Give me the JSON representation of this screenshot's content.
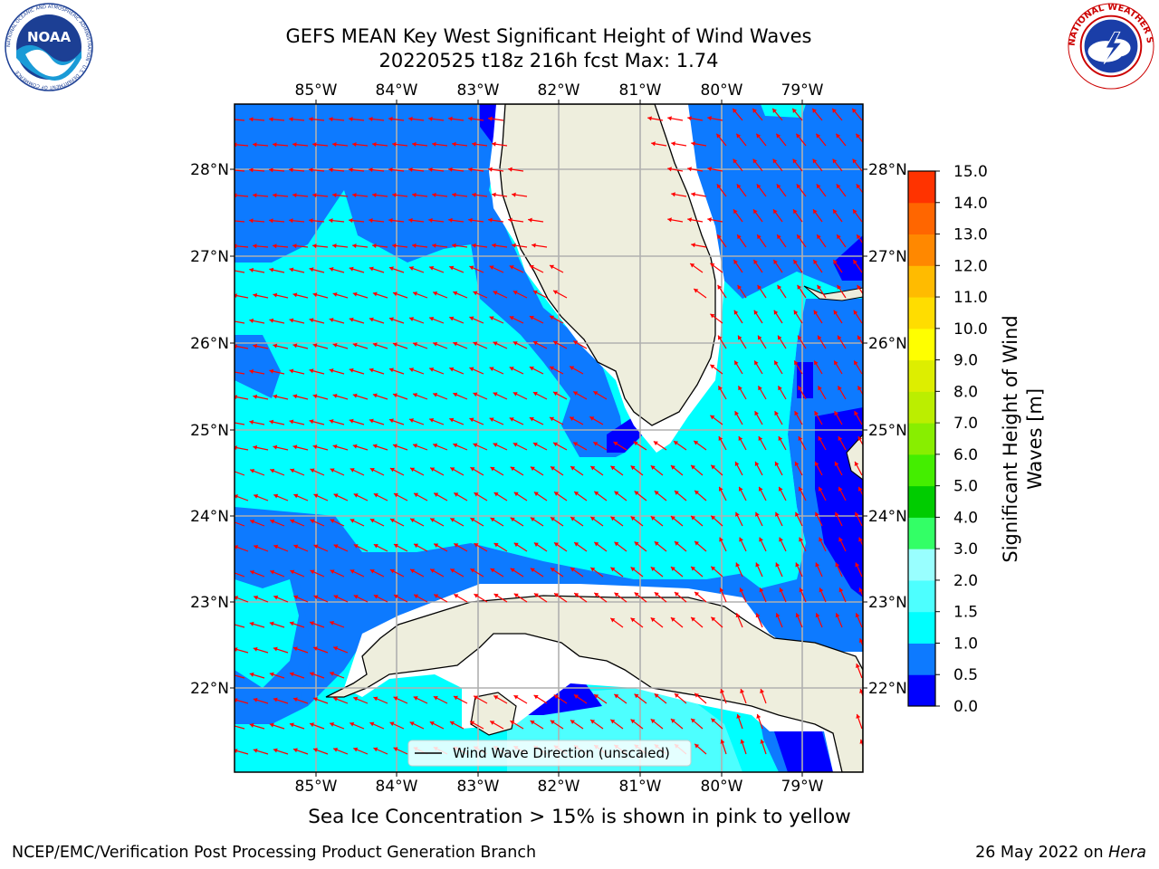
{
  "title": {
    "line1": "GEFS MEAN Key West Significant Height of Wind Waves",
    "line2": "20220525 t18z 216h fcst   Max: 1.74"
  },
  "logos": {
    "left": "noaa-logo",
    "left_text": "NOAA",
    "left_ring_text": "NATIONAL OCEANIC AND ATMOSPHERIC ADMINISTRATION · U.S. DEPARTMENT OF COMMERCE",
    "right": "national-weather-service-logo",
    "right_ring_text": "NATIONAL WEATHER SERVICE"
  },
  "map": {
    "lon_labels": [
      "85°W",
      "84°W",
      "83°W",
      "82°W",
      "81°W",
      "80°W",
      "79°W"
    ],
    "lat_labels": [
      "28°N",
      "27°N",
      "26°N",
      "25°N",
      "24°N",
      "23°N",
      "22°N"
    ],
    "legend_label": "Wind Wave Direction (unscaled)",
    "colors": {
      "land": "#eeeedd",
      "sea_0_05": "#0000ff",
      "sea_05_1": "#0d7aff",
      "sea_1_15": "#00ffff",
      "sea_15_2": "#4dffff",
      "arrow": "#ff0000",
      "grid": "#b0b0b0"
    }
  },
  "colorbar": {
    "ticks": [
      "15.0",
      "14.0",
      "13.0",
      "12.0",
      "11.0",
      "10.0",
      "9.0",
      "8.0",
      "7.0",
      "6.0",
      "5.0",
      "4.0",
      "3.0",
      "2.0",
      "1.5",
      "1.0",
      "0.5",
      "0.0"
    ],
    "colors_bottom_to_top": [
      "#0000ff",
      "#0d7aff",
      "#00ffff",
      "#4dffff",
      "#99ffff",
      "#33ff66",
      "#00cc00",
      "#44ee00",
      "#88ee00",
      "#bbee00",
      "#ddee00",
      "#ffff00",
      "#ffdd00",
      "#ffbb00",
      "#ff8800",
      "#ff6600",
      "#ff3300"
    ],
    "label_line1": "Significant Height of Wind",
    "label_line2": "Waves [m]"
  },
  "sea_ice_note": "Sea Ice Concentration > 15% is shown in pink to yellow",
  "footer": {
    "left": "NCEP/EMC/Verification Post Processing Product Generation Branch",
    "right_prefix": "26 May 2022 on ",
    "right_host": "Hera"
  }
}
